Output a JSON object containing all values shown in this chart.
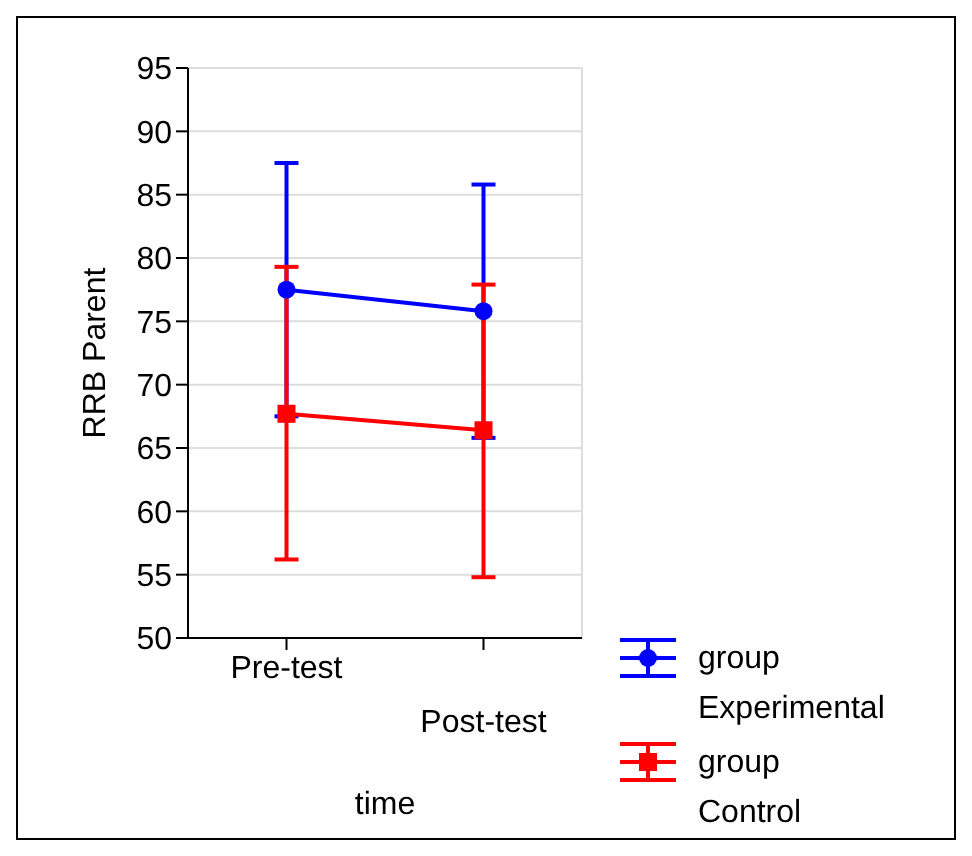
{
  "chart_data": {
    "type": "line",
    "xlabel": "time",
    "ylabel": "RRB Parent",
    "categories": [
      "Pre-test",
      "Post-test"
    ],
    "series": [
      {
        "name": "group Experimental",
        "color": "#0000ff",
        "marker": "circle",
        "values": [
          77.5,
          75.8
        ],
        "errors": [
          [
            67.5,
            87.5
          ],
          [
            65.8,
            85.8
          ]
        ]
      },
      {
        "name": "group Control",
        "color": "#ff0000",
        "marker": "square",
        "values": [
          67.7,
          66.4
        ],
        "errors": [
          [
            56.2,
            79.3
          ],
          [
            54.8,
            77.9
          ]
        ]
      }
    ],
    "ylim": [
      50,
      95
    ],
    "yticks": [
      50,
      55,
      60,
      65,
      70,
      75,
      80,
      85,
      90,
      95
    ],
    "grid": true,
    "legend": "bottom right",
    "line_style": "solid"
  }
}
